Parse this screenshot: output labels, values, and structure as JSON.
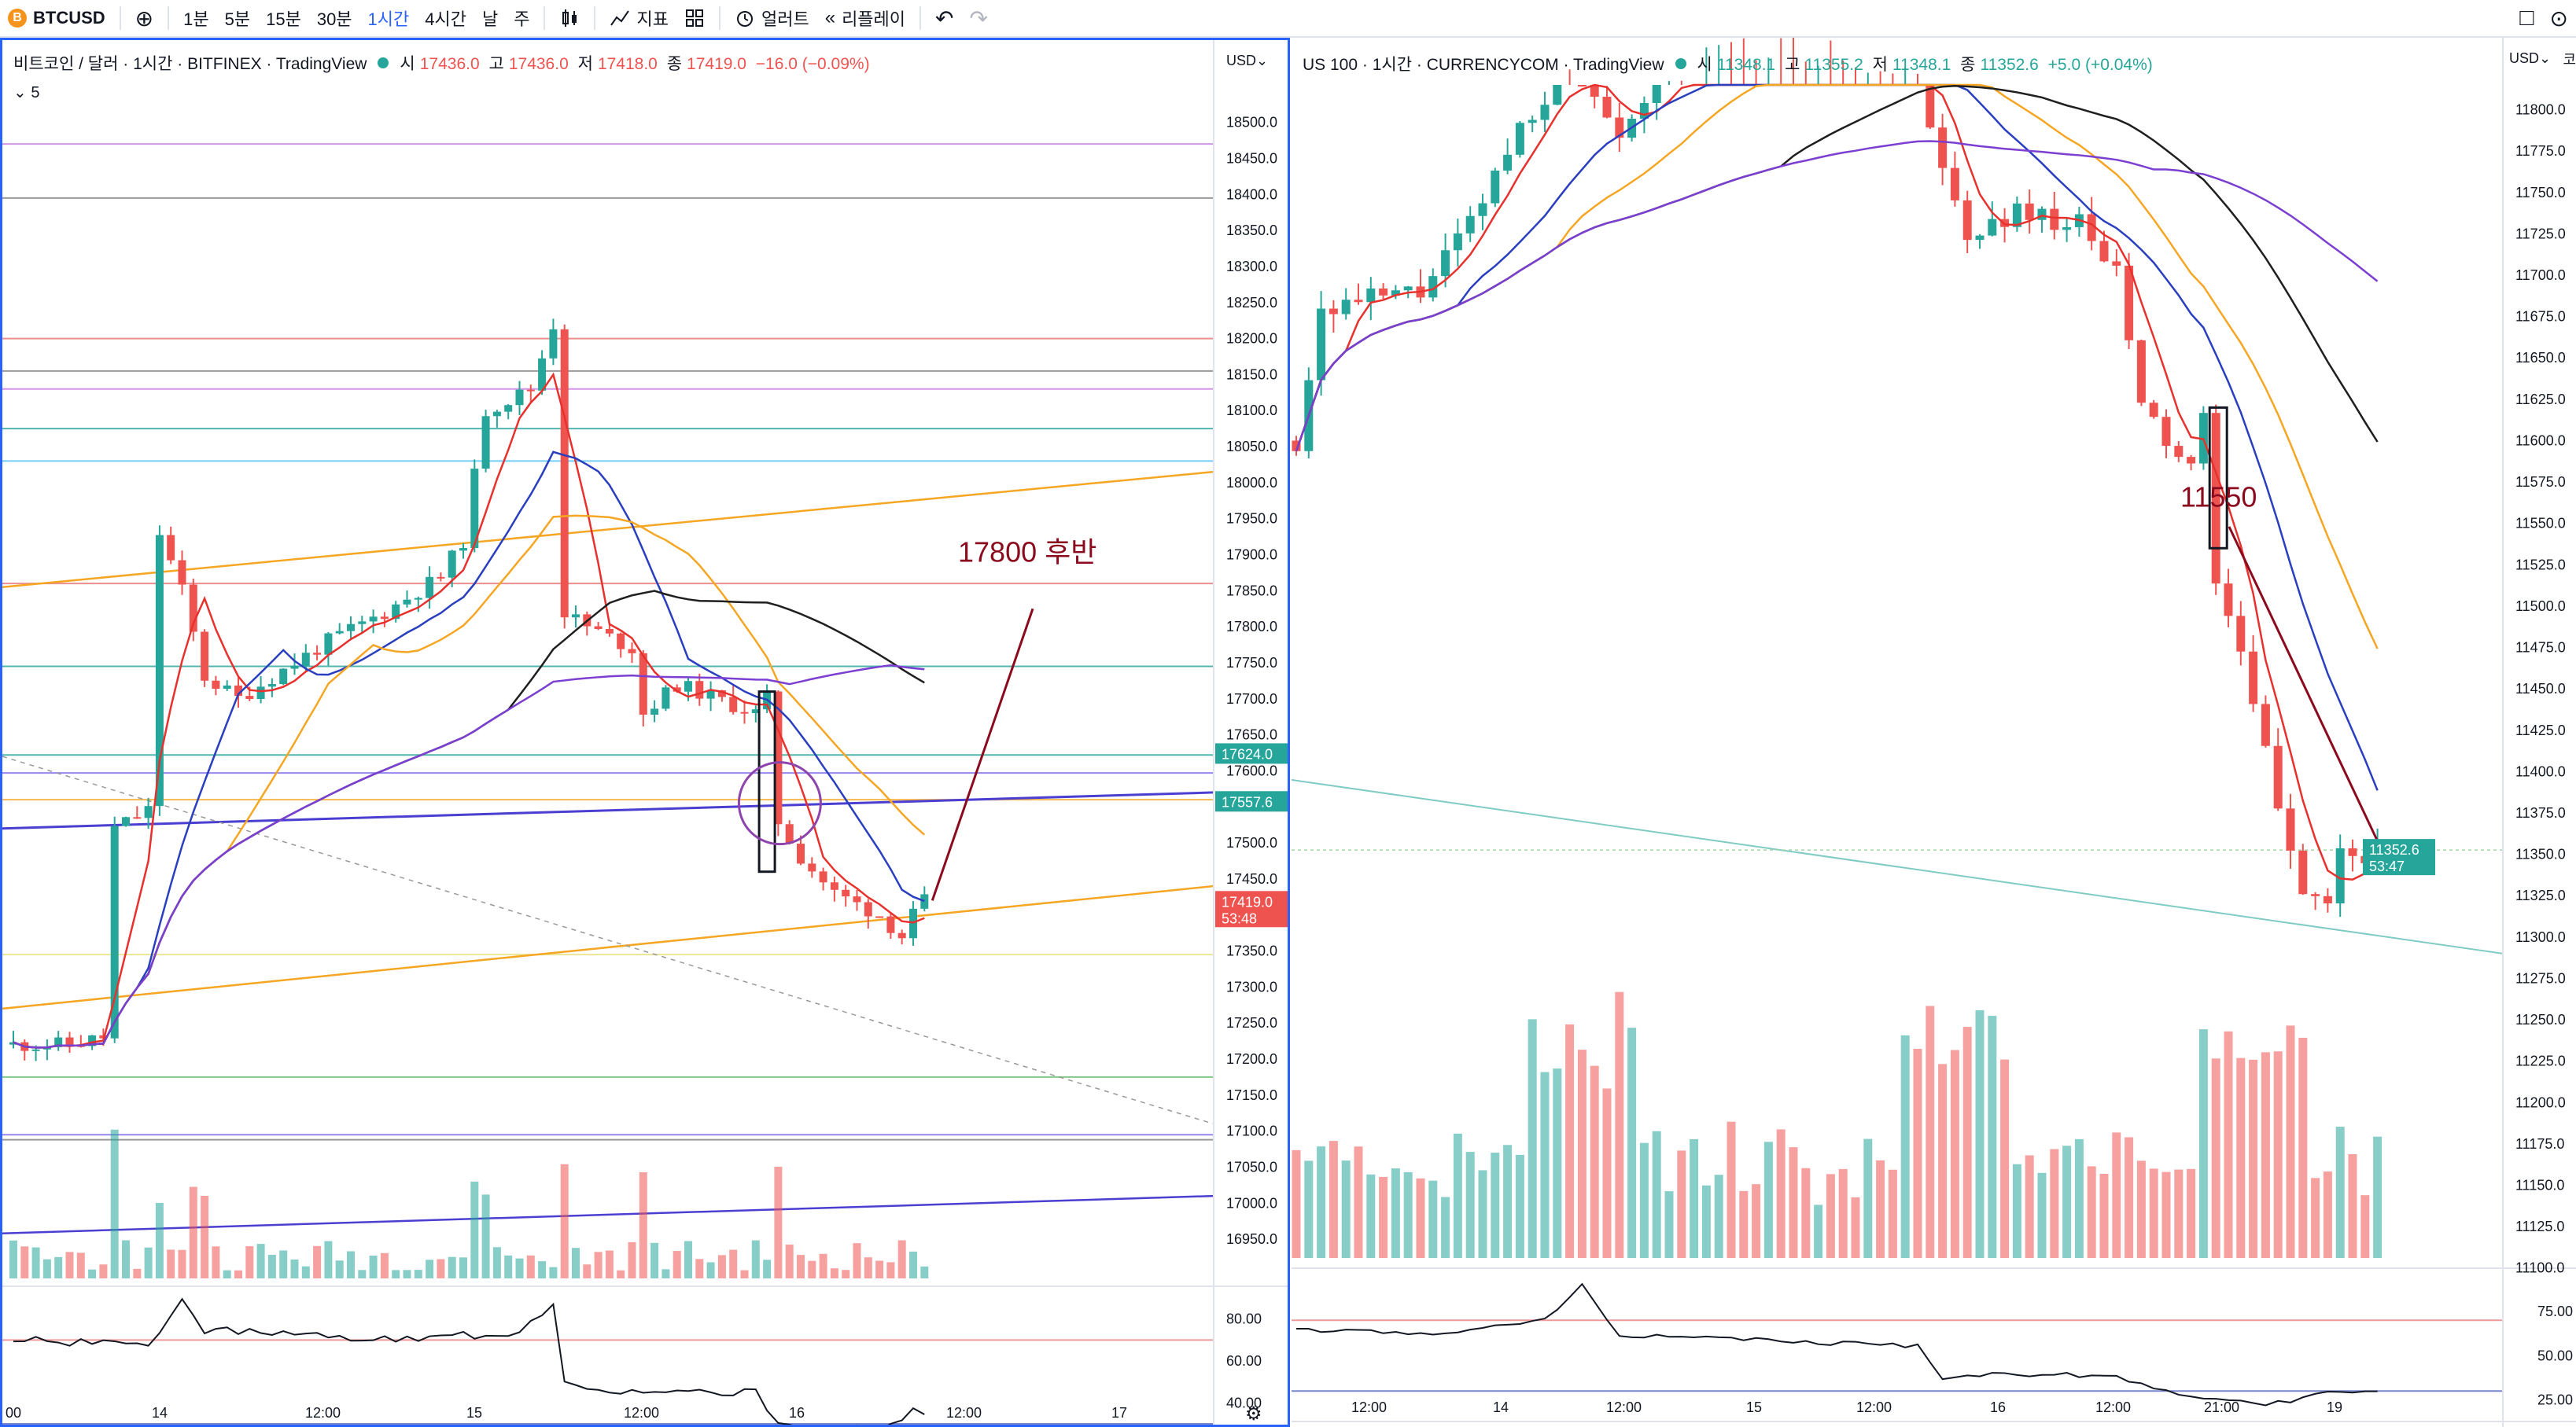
{
  "toolbar": {
    "symbol": "BTCUSD",
    "symbol_icon": "B",
    "add_icon": "⊕",
    "intervals": [
      "1분",
      "5분",
      "15분",
      "30분",
      "1시간",
      "4시간",
      "날",
      "주"
    ],
    "active_interval": "1시간",
    "chart_type_icon": "candles-icon",
    "indicators_label": "지표",
    "layout_icon": "layout-icon",
    "alert_label": "얼러트",
    "replay_label": "리플레이",
    "undo_icon": "↶",
    "redo_icon": "↷",
    "right_icon": "□",
    "camera_icon": "⊙"
  },
  "left_chart": {
    "title": "비트코인 / 달러 · 1시간 · BITFINEX · TradingView",
    "ohlc": {
      "o_label": "시",
      "o": "17436.0",
      "h_label": "고",
      "h": "17436.0",
      "l_label": "저",
      "l": "17418.0",
      "c_label": "종",
      "c": "17419.0",
      "chg": "−16.0 (−0.09%)"
    },
    "indicator_legend": "⌄ 5",
    "currency": "USD⌄",
    "price_ticks": [
      "18500.0",
      "18450.0",
      "18400.0",
      "18350.0",
      "18300.0",
      "18250.0",
      "18200.0",
      "18150.0",
      "18100.0",
      "18050.0",
      "18000.0",
      "17950.0",
      "17900.0",
      "17850.0",
      "17800.0",
      "17750.0",
      "17700.0",
      "17650.0",
      "17600.0",
      "17550.0",
      "17500.0",
      "17450.0",
      "17400.0",
      "17350.0",
      "17300.0",
      "17250.0",
      "17200.0",
      "17150.0",
      "17100.0",
      "17050.0",
      "17000.0",
      "16950.0"
    ],
    "price_badges": [
      {
        "text": "17624.0",
        "color": "#26a69a"
      },
      {
        "text": "17557.6",
        "color": "#26a69a"
      },
      {
        "text": "17419.0",
        "sub": "53:48",
        "color": "#ef5350"
      }
    ],
    "rsi_ticks": [
      "80.00",
      "60.00",
      "40.00"
    ],
    "time_ticks": [
      "00",
      "14",
      "12:00",
      "15",
      "12:00",
      "16",
      "12:00",
      "17"
    ],
    "annotation": "17800 후반",
    "settings_icon": "⚙"
  },
  "right_chart": {
    "title": "US 100 · 1시간 · CURRENCYCOM · TradingView",
    "ohlc": {
      "o_label": "시",
      "o": "11348.1",
      "h_label": "고",
      "h": "11355.2",
      "l_label": "저",
      "l": "11348.1",
      "c_label": "종",
      "c": "11352.6",
      "chg": "+5.0 (+0.04%)"
    },
    "currency": "USD⌄",
    "price_ticks": [
      "11800.0",
      "11775.0",
      "11750.0",
      "11725.0",
      "11700.0",
      "11675.0",
      "11650.0",
      "11625.0",
      "11600.0",
      "11575.0",
      "11550.0",
      "11525.0",
      "11500.0",
      "11475.0",
      "11450.0",
      "11425.0",
      "11400.0",
      "11375.0",
      "11350.0",
      "11325.0",
      "11300.0",
      "11275.0",
      "11250.0",
      "11225.0",
      "11200.0",
      "11175.0",
      "11150.0",
      "11125.0",
      "11100.0"
    ],
    "price_badges": [
      {
        "text": "11352.6",
        "sub": "53:47",
        "color": "#26a69a"
      }
    ],
    "rsi_ticks": [
      "75.00",
      "50.00",
      "25.00"
    ],
    "time_ticks": [
      "12:00",
      "14",
      "12:00",
      "15",
      "12:00",
      "16",
      "12:00",
      "21:00",
      "19"
    ],
    "annotation": "11550",
    "corner_text": "코"
  },
  "colors": {
    "up": "#26a69a",
    "down": "#ef5350",
    "ma_red": "#e8312d",
    "ma_blue": "#2a3fbf",
    "ma_orange": "#f5a623",
    "ma_black": "#1f1f1f",
    "ma_purple": "#7b3fd1",
    "annotation": "#8b0a1d",
    "accent": "#2962ff"
  }
}
